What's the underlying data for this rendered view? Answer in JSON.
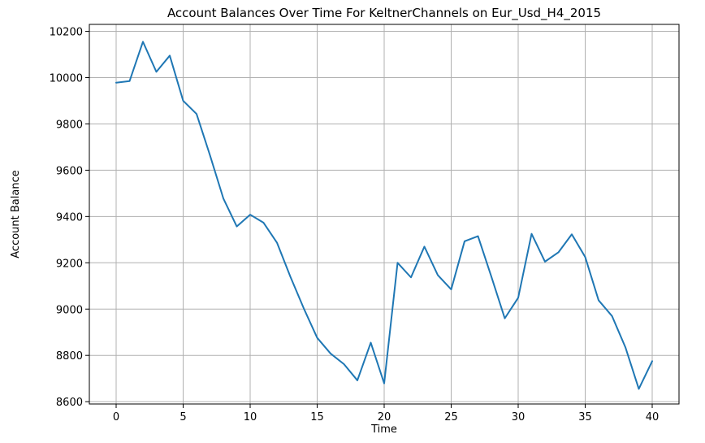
{
  "chart_data": {
    "type": "line",
    "title": "Account Balances Over Time For KeltnerChannels on Eur_Usd_H4_2015",
    "xlabel": "Time",
    "ylabel": "Account Balance",
    "xlim": [
      -2,
      42
    ],
    "ylim": [
      8590,
      10230
    ],
    "xticks": [
      0,
      5,
      10,
      15,
      20,
      25,
      30,
      35,
      40
    ],
    "yticks": [
      8600,
      8800,
      9000,
      9200,
      9400,
      9600,
      9800,
      10000,
      10200
    ],
    "grid": true,
    "series": [
      {
        "color": "#1f77b4",
        "x": [
          0,
          1,
          2,
          3,
          4,
          5,
          6,
          7,
          8,
          9,
          10,
          11,
          12,
          13,
          14,
          15,
          16,
          17,
          18,
          19,
          20,
          21,
          22,
          23,
          24,
          25,
          26,
          27,
          28,
          29,
          30,
          31,
          32,
          33,
          34,
          35,
          36,
          37,
          38,
          39,
          40
        ],
        "y": [
          9978,
          9985,
          10155,
          10025,
          10095,
          9900,
          9843,
          9665,
          9478,
          9357,
          9408,
          9373,
          9287,
          9140,
          9003,
          8876,
          8808,
          8762,
          8692,
          8855,
          8679,
          9200,
          9137,
          9270,
          9147,
          9085,
          9293,
          9315,
          9140,
          8960,
          9049,
          9325,
          9205,
          9245,
          9323,
          9225,
          9038,
          8970,
          8835,
          8655,
          8775
        ]
      }
    ]
  }
}
